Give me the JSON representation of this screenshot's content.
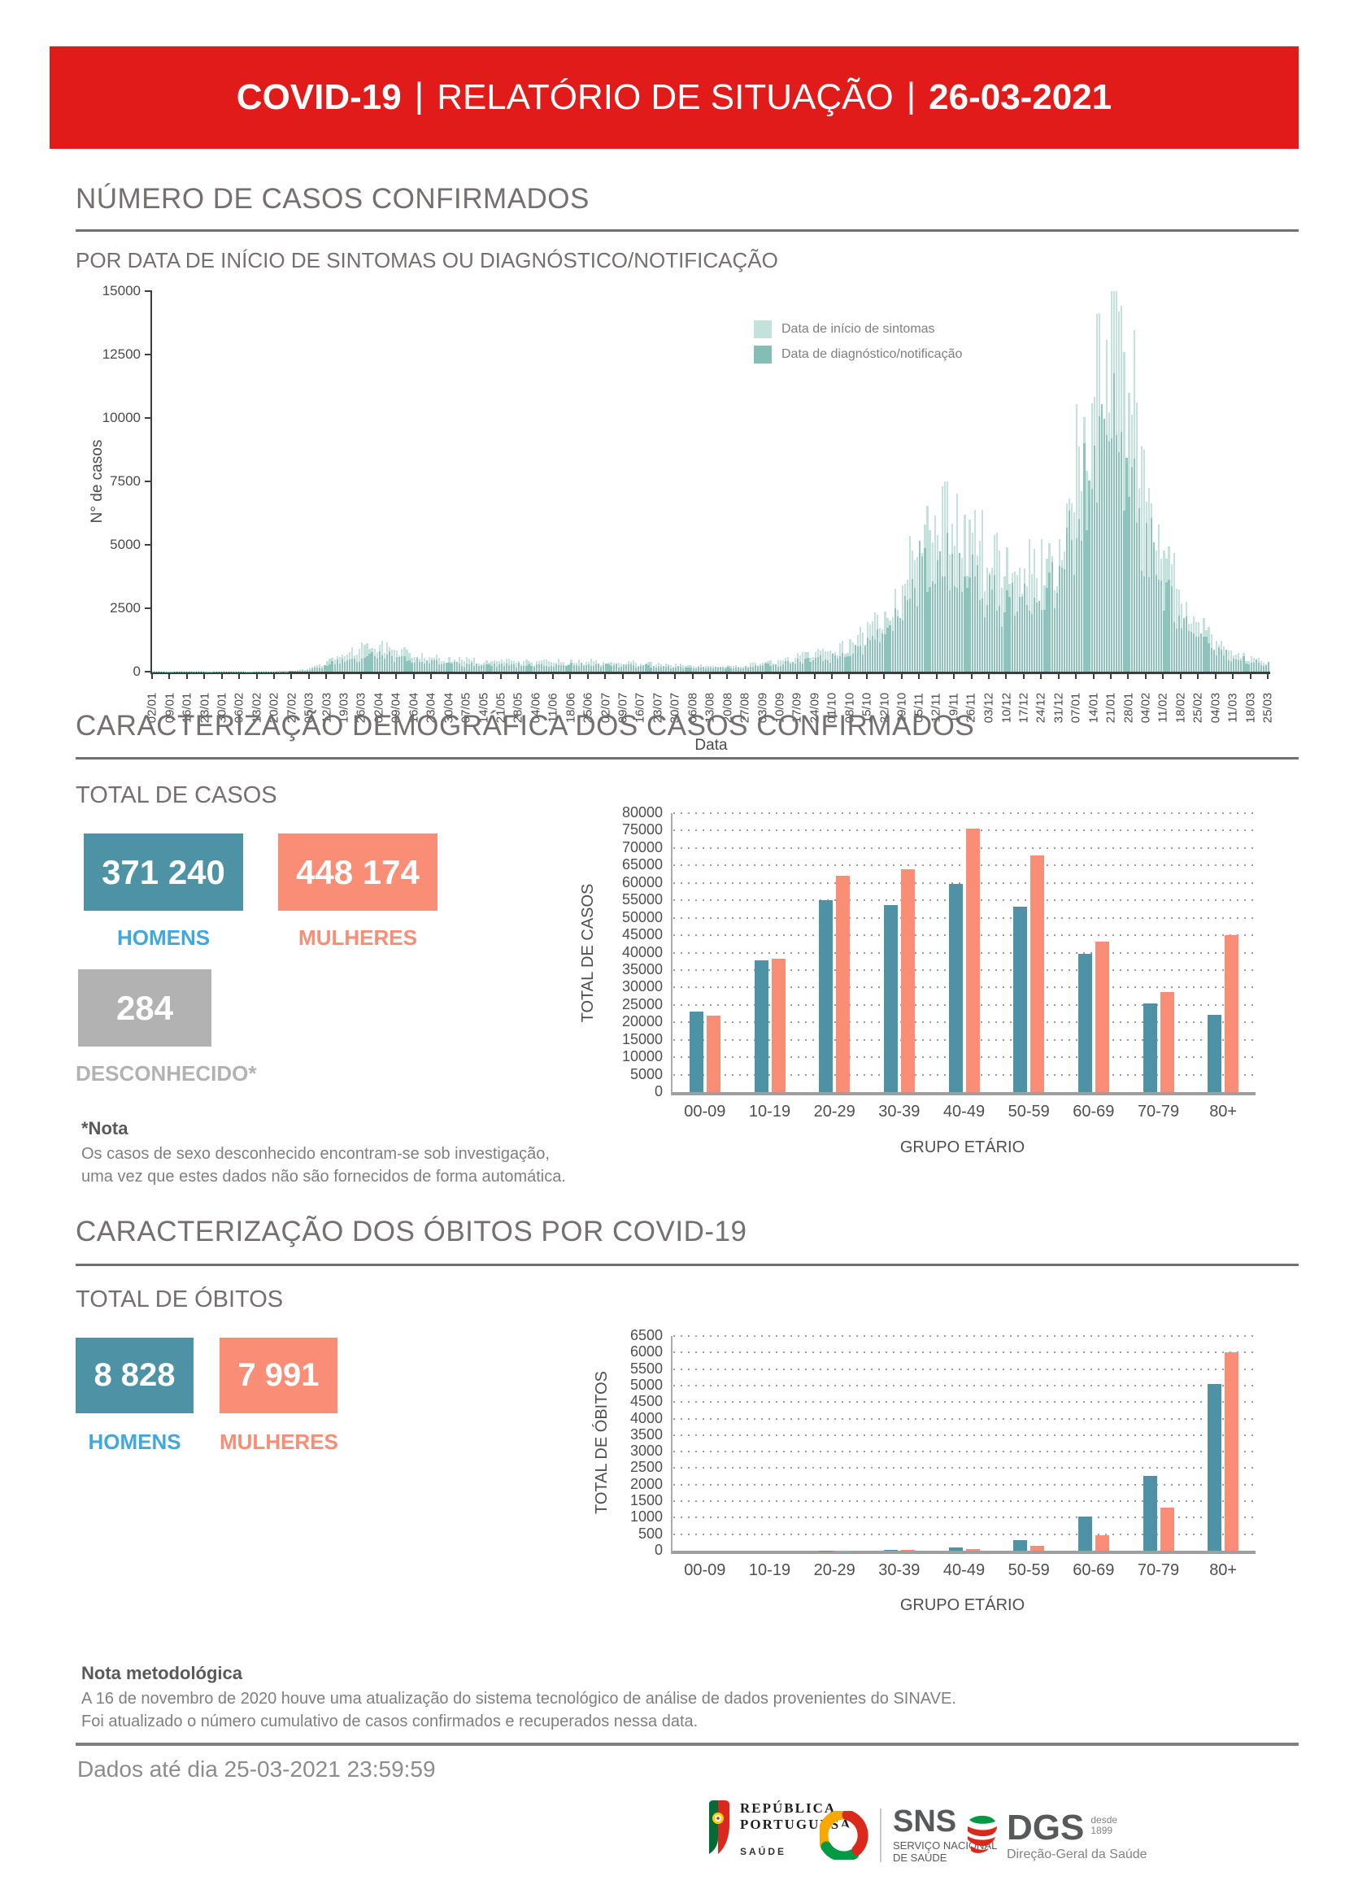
{
  "header": {
    "title_main": "COVID-19",
    "separator": "|",
    "title_sub": "RELATÓRIO DE SITUAÇÃO",
    "date": "26-03-2021"
  },
  "section_cases": {
    "title": "NÚMERO DE CASOS CONFIRMADOS",
    "subtitle": "POR DATA DE INÍCIO DE SINTOMAS OU DIAGNÓSTICO/NOTIFICAÇÃO"
  },
  "section_demographics": {
    "title": "CARACTERIZAÇÃO DEMOGRÁFICA DOS CASOS CONFIRMADOS",
    "total_label": "TOTAL DE CASOS",
    "men_value": "371 240",
    "men_label": "HOMENS",
    "women_value": "448 174",
    "women_label": "MULHERES",
    "unknown_value": "284",
    "unknown_label": "DESCONHECIDO*",
    "note_title": "*Nota",
    "note_line1": "Os casos de sexo desconhecido encontram-se sob investigação,",
    "note_line2": "uma vez que estes dados não são fornecidos de forma automática."
  },
  "section_deaths": {
    "title": "CARACTERIZAÇÃO DOS ÓBITOS POR COVID-19",
    "total_label": "TOTAL DE ÓBITOS",
    "men_value": "8 828",
    "men_label": "HOMENS",
    "women_value": "7 991",
    "women_label": "MULHERES"
  },
  "footer": {
    "method_note_title": "Nota metodológica",
    "method_note_line1": "A 16 de novembro de 2020 houve uma atualização do sistema tecnológico de análise de dados provenientes do SINAVE.",
    "method_note_line2": "Foi atualizado o número cumulativo de casos confirmados e recuperados nessa data.",
    "data_until": "Dados até dia 25-03-2021 23:59:59",
    "logos": {
      "republica": {
        "line1": "REPÚBLICA",
        "line2": "PORTUGUESA",
        "line3": "SAÚDE",
        "icon": "portuguese-flag-emblem"
      },
      "sns": {
        "acronym": "SNS",
        "line1": "SERVIÇO NACIONAL",
        "line2": "DE SAÚDE",
        "icon": "sns-sphere"
      },
      "dgs": {
        "acronym": "DGS",
        "since_word": "desde",
        "since_year": "1899",
        "name": "Direção-Geral da Saúde",
        "icon": "dgs-globe"
      }
    }
  },
  "colors": {
    "banner": "#e11b1a",
    "men_teal": "#4d93a5",
    "women_salmon": "#f98d76",
    "men_label_blue": "#41a8dd",
    "unknown_gray": "#b3b2b2",
    "symptoms_light_teal": "#c2e2db",
    "diagnosis_dark_teal": "#83bdb4",
    "heading_gray": "#756f6f"
  },
  "chart_data": [
    {
      "type": "area",
      "title": "",
      "xlabel": "Data",
      "ylabel": "N° de casos",
      "ylim": [
        0,
        15000
      ],
      "yticks": [
        0,
        2500,
        5000,
        7500,
        10000,
        12500,
        15000
      ],
      "grid": false,
      "legend_position": "upper-middle",
      "x_weekly_labels": [
        "02/01",
        "09/01",
        "16/01",
        "23/01",
        "30/01",
        "06/02",
        "13/02",
        "20/02",
        "27/02",
        "05/03",
        "12/03",
        "19/03",
        "26/03",
        "02/04",
        "09/04",
        "16/04",
        "23/04",
        "30/04",
        "07/05",
        "14/05",
        "21/05",
        "28/05",
        "04/06",
        "11/06",
        "18/06",
        "25/06",
        "02/07",
        "09/07",
        "16/07",
        "23/07",
        "30/07",
        "06/08",
        "13/08",
        "20/08",
        "27/08",
        "03/09",
        "10/09",
        "17/09",
        "24/09",
        "01/10",
        "08/10",
        "15/10",
        "22/10",
        "29/10",
        "05/11",
        "12/11",
        "19/11",
        "26/11",
        "03/12",
        "10/12",
        "17/12",
        "24/12",
        "31/12",
        "07/01",
        "14/01",
        "21/01",
        "28/01",
        "04/02",
        "11/02",
        "18/02",
        "25/02",
        "04/03",
        "11/03",
        "18/03",
        "25/03"
      ],
      "series": [
        {
          "name": "Data de início de sintomas",
          "weekly_values": [
            5,
            5,
            5,
            8,
            10,
            10,
            12,
            15,
            30,
            120,
            400,
            750,
            950,
            1000,
            870,
            720,
            600,
            520,
            450,
            430,
            420,
            400,
            380,
            400,
            420,
            400,
            380,
            360,
            340,
            300,
            260,
            230,
            220,
            240,
            260,
            350,
            450,
            600,
            700,
            800,
            1100,
            1700,
            2400,
            3300,
            5800,
            6200,
            6500,
            5600,
            4600,
            4000,
            4100,
            4300,
            5600,
            9000,
            11500,
            14500,
            12500,
            8000,
            4800,
            2900,
            1900,
            1200,
            850,
            600,
            450
          ]
        },
        {
          "name": "Data de diagnóstico/notificação",
          "weekly_values": [
            4,
            4,
            4,
            6,
            7,
            7,
            8,
            11,
            21,
            84,
            280,
            525,
            665,
            700,
            610,
            505,
            420,
            365,
            315,
            300,
            295,
            280,
            265,
            280,
            295,
            280,
            265,
            250,
            240,
            210,
            180,
            160,
            155,
            170,
            180,
            245,
            315,
            420,
            490,
            560,
            770,
            1190,
            1680,
            2310,
            4050,
            4350,
            4550,
            3900,
            3200,
            2800,
            2870,
            3000,
            3900,
            6300,
            8050,
            9700,
            8400,
            5400,
            3250,
            1950,
            1300,
            840,
            595,
            420,
            315
          ]
        }
      ]
    },
    {
      "type": "bar",
      "categories": [
        "00-09",
        "10-19",
        "20-29",
        "30-39",
        "40-49",
        "50-59",
        "60-69",
        "70-79",
        "80+"
      ],
      "series": [
        {
          "name": "Homens",
          "values": [
            23100,
            37800,
            55100,
            53600,
            59700,
            53200,
            39600,
            25400,
            22200
          ]
        },
        {
          "name": "Mulheres",
          "values": [
            21900,
            38200,
            62100,
            63900,
            75600,
            67900,
            43100,
            28700,
            45100
          ]
        }
      ],
      "title": "",
      "xlabel": "GRUPO ETÁRIO",
      "ylabel": "TOTAL DE CASOS",
      "ylim": [
        0,
        80000
      ],
      "ytick_step": 5000,
      "grid": "dotted-horizontal"
    },
    {
      "type": "bar",
      "categories": [
        "00-09",
        "10-19",
        "20-29",
        "30-39",
        "40-49",
        "50-59",
        "60-69",
        "70-79",
        "80+"
      ],
      "series": [
        {
          "name": "Homens",
          "values": [
            1,
            1,
            6,
            27,
            103,
            328,
            1042,
            2276,
            5044
          ]
        },
        {
          "name": "Mulheres",
          "values": [
            1,
            1,
            5,
            14,
            53,
            150,
            461,
            1294,
            6012
          ]
        }
      ],
      "title": "",
      "xlabel": "GRUPO ETÁRIO",
      "ylabel": "TOTAL DE ÓBITOS",
      "ylim": [
        0,
        6500
      ],
      "ytick_step": 500,
      "grid": "dotted-horizontal"
    }
  ]
}
